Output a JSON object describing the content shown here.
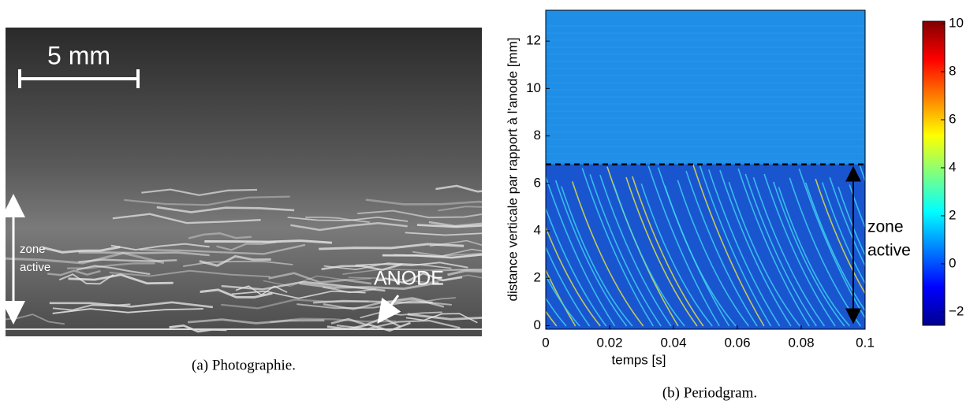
{
  "panels": [
    {
      "caption": "(a) Photographie.",
      "scale_label": "5 mm",
      "zone_label": [
        "zone",
        "active"
      ],
      "anode_label": "ANODE"
    },
    {
      "caption": "(b) Periodgram.",
      "chart": {
        "type": "heatmap",
        "xlabel": "temps [s]",
        "ylabel": "distance verticale par rapport à l'anode [mm]",
        "xlim": [
          0,
          0.1
        ],
        "xticks": [
          0,
          0.02,
          0.04,
          0.06,
          0.08,
          0.1
        ],
        "ylim": [
          -0.15,
          13.3
        ],
        "yticks": [
          0,
          2,
          4,
          6,
          8,
          10,
          12
        ],
        "active_zone_top": 6.8,
        "annotation": [
          "zone",
          "active"
        ],
        "colorbar": {
          "colormap": "jet",
          "lim": [
            -2.56,
            10.1
          ],
          "ticks": [
            {
              "value": -2,
              "label": "−2"
            },
            0,
            2,
            4,
            6,
            8,
            10
          ]
        }
      }
    }
  ]
}
